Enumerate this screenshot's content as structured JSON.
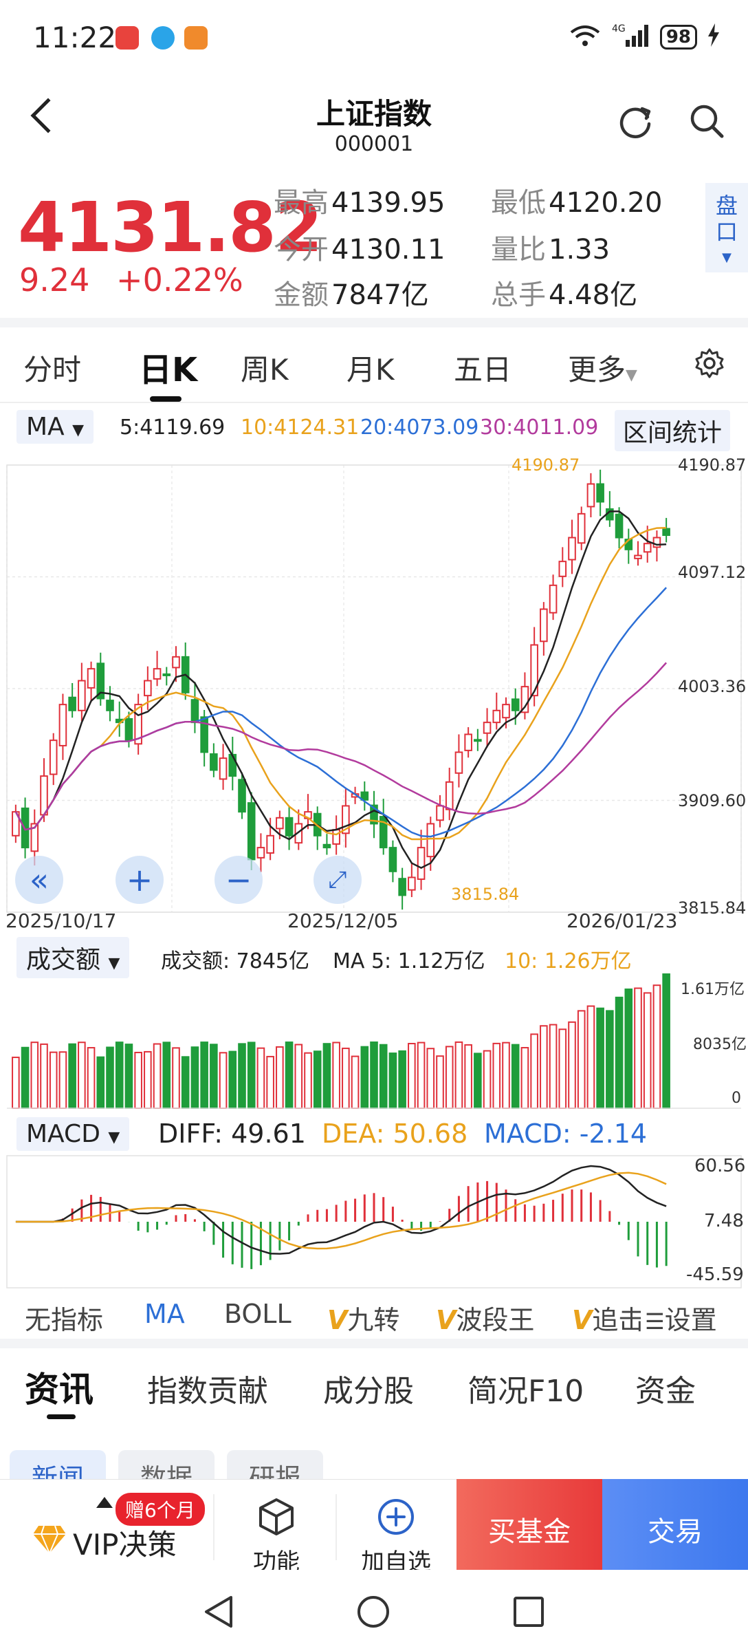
{
  "status": {
    "time": "11:22",
    "network": "4G",
    "wifi_label": "6",
    "battery": "98"
  },
  "header": {
    "title": "上证指数",
    "code": "000001"
  },
  "quote": {
    "price": "4131.82",
    "change": "9.24",
    "change_pct": "+0.22%",
    "stats": [
      {
        "label": "最高",
        "value": "4139.95"
      },
      {
        "label": "最低",
        "value": "4120.20"
      },
      {
        "label": "今开",
        "value": "4130.11"
      },
      {
        "label": "量比",
        "value": "1.33"
      },
      {
        "label": "金额",
        "value": "7847亿"
      },
      {
        "label": "总手",
        "value": "4.48亿"
      }
    ],
    "pankou": "盘口"
  },
  "tabs": [
    "分时",
    "日K",
    "周K",
    "月K",
    "五日",
    "更多"
  ],
  "ma_strip": {
    "selector": "MA",
    "ma5": "5:4119.69",
    "ma10": "10:4124.31",
    "ma20": "20:4073.09",
    "ma30": "30:4011.09",
    "interval_stats": "区间统计"
  },
  "kchart": {
    "y_ticks": [
      "4190.87",
      "4097.12",
      "4003.36",
      "3909.60",
      "3815.84"
    ],
    "x_ticks": [
      "2025/10/17",
      "2025/12/05",
      "2026/01/23"
    ],
    "high_mark": "4190.87",
    "low_mark": "3815.84"
  },
  "volume_strip": {
    "selector": "成交额",
    "value": "成交额: 7845亿",
    "ma5": "MA 5: 1.12万亿",
    "ma10": "10: 1.26万亿",
    "y_ticks": [
      "1.61万亿",
      "8035亿",
      "0"
    ]
  },
  "macd_strip": {
    "selector": "MACD",
    "diff": "DIFF: 49.61",
    "dea": "DEA: 50.68",
    "macd": "MACD: -2.14",
    "y_ticks": [
      "60.56",
      "7.48",
      "-45.59"
    ]
  },
  "indicators": [
    "无指标",
    "MA",
    "BOLL",
    "九转",
    "波段王",
    "追击",
    "设置"
  ],
  "news_tabs": [
    "资讯",
    "指数贡献",
    "成分股",
    "简况F10",
    "资金"
  ],
  "sub_tabs": [
    "新闻",
    "数据",
    "研报"
  ],
  "actions": {
    "vip": "VIP决策",
    "vip_badge": "赠6个月",
    "function": "功能",
    "add": "加自选",
    "buy_fund": "买基金",
    "trade": "交易"
  },
  "colors": {
    "up": "#e0303a",
    "down": "#1f9d3b",
    "ma5": "#222222",
    "ma10": "#e9a21c",
    "ma20": "#2c6fd6",
    "ma30": "#b23b9d"
  },
  "chart_data": {
    "type": "candlestick",
    "note_series": [
      {
        "name": "MA5",
        "end_value": 4119.69
      },
      {
        "name": "MA10",
        "end_value": 4124.31
      },
      {
        "name": "MA20",
        "end_value": 4073.09
      },
      {
        "name": "MA30",
        "end_value": 4011.09
      }
    ],
    "ylim": [
      3815.84,
      4190.87
    ],
    "x": [
      "2025/10/17",
      "2025/12/05",
      "2026/01/23"
    ],
    "closes": [
      3900,
      3870,
      3890,
      3930,
      3960,
      3990,
      3985,
      4010,
      4020,
      3995,
      3985,
      3975,
      3960,
      3990,
      4010,
      4020,
      4015,
      4030,
      4000,
      3975,
      3950,
      3935,
      3945,
      3930,
      3900,
      3860,
      3870,
      3880,
      3895,
      3880,
      3890,
      3900,
      3880,
      3870,
      3885,
      3905,
      3915,
      3910,
      3890,
      3870,
      3850,
      3830,
      3845,
      3870,
      3890,
      3905,
      3925,
      3950,
      3965,
      3960,
      3975,
      3985,
      3990,
      3985,
      4005,
      4040,
      4070,
      4090,
      4110,
      4130,
      4150,
      4175,
      4160,
      4145,
      4130,
      4120,
      4115,
      4125,
      4130,
      4132
    ]
  }
}
